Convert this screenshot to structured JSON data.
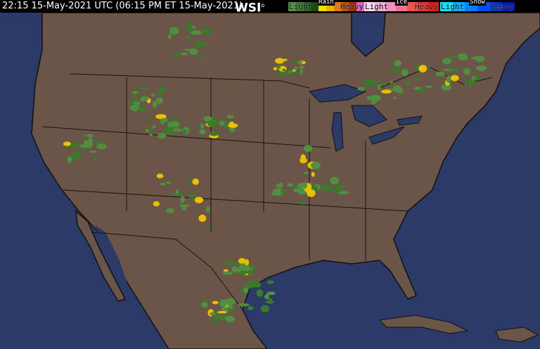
{
  "header": {
    "timestamp": "22:15 15-May-2021 UTC  (06:15 PM ET 15-May-2021)",
    "logo": "WSI"
  },
  "legend": [
    {
      "title": "Rain",
      "light": "Light",
      "heavy": "Heavy",
      "colors": [
        "#4f8f3f",
        "#3a7a2a",
        "#2a6020",
        "#1c4a10",
        "#e8e000",
        "#f0b000",
        "#e07820",
        "#c05010",
        "#a03000",
        "#e060c0"
      ]
    },
    {
      "title": "Ice",
      "light": "Light",
      "heavy": "Heavy",
      "colors": [
        "#f8d8f0",
        "#f0b0e0",
        "#f090c0",
        "#f07090",
        "#f05050",
        "#f03030",
        "#e01818"
      ]
    },
    {
      "title": "Snow",
      "light": "Light",
      "heavy": "Heavy",
      "colors": [
        "#00e8ff",
        "#00b0ff",
        "#0080ff",
        "#0050f0",
        "#0030d0",
        "#0018b0"
      ]
    }
  ],
  "colors": {
    "ocean": "#2b3a66",
    "land": "#6b5548",
    "borders": "#1a1410",
    "precip_light": "#4f8f3f"
  }
}
